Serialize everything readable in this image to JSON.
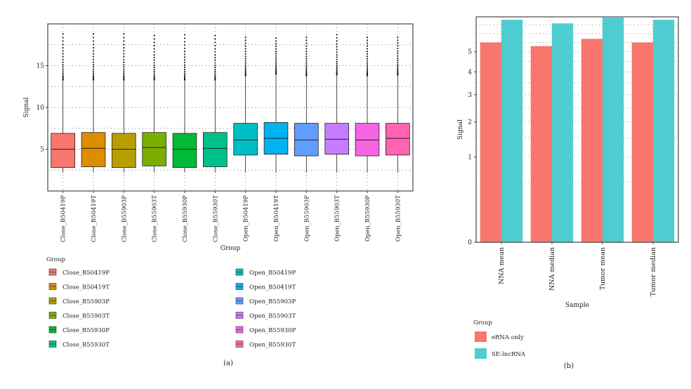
{
  "chart_data": [
    {
      "type": "box",
      "panel_label": "(a)",
      "ylabel": "Signal",
      "xlabel": "Group",
      "yticks": [
        5,
        10,
        15
      ],
      "ylim": [
        0,
        20
      ],
      "grid": "dotted",
      "legend_title": "Group",
      "legend_placement": "bottom",
      "categories": [
        "Close_B50419P",
        "Close_B50419T",
        "Close_B55903P",
        "Close_B55903T",
        "Close_B55930P",
        "Close_B55930T",
        "Open_B50419P",
        "Open_B50419T",
        "Open_B55903P",
        "Open_B55903T",
        "Open_B55930P",
        "Open_B55930T"
      ],
      "colors": [
        "#F8766D",
        "#DE8C00",
        "#B79F00",
        "#7CAE00",
        "#00BA38",
        "#00C08B",
        "#00BFC4",
        "#00B4F0",
        "#619CFF",
        "#C77CFF",
        "#F564E3",
        "#FF64B0"
      ],
      "boxes": [
        {
          "min": 2.2,
          "q1": 2.8,
          "median": 5.0,
          "q3": 6.9,
          "whisker_high": 13.3,
          "outlier_max": 18.8
        },
        {
          "min": 2.2,
          "q1": 2.9,
          "median": 5.1,
          "q3": 7.0,
          "whisker_high": 13.3,
          "outlier_max": 18.8
        },
        {
          "min": 2.2,
          "q1": 2.8,
          "median": 5.0,
          "q3": 6.9,
          "whisker_high": 13.3,
          "outlier_max": 18.8
        },
        {
          "min": 2.2,
          "q1": 3.0,
          "median": 5.2,
          "q3": 7.0,
          "whisker_high": 13.3,
          "outlier_max": 18.6
        },
        {
          "min": 2.2,
          "q1": 2.8,
          "median": 5.0,
          "q3": 6.9,
          "whisker_high": 13.3,
          "outlier_max": 18.7
        },
        {
          "min": 2.2,
          "q1": 2.9,
          "median": 5.1,
          "q3": 7.0,
          "whisker_high": 13.3,
          "outlier_max": 18.6
        },
        {
          "min": 2.2,
          "q1": 4.3,
          "median": 6.1,
          "q3": 8.1,
          "whisker_high": 13.8,
          "outlier_max": 18.4
        },
        {
          "min": 2.2,
          "q1": 4.4,
          "median": 6.3,
          "q3": 8.2,
          "whisker_high": 14.0,
          "outlier_max": 18.3
        },
        {
          "min": 2.2,
          "q1": 4.2,
          "median": 6.1,
          "q3": 8.1,
          "whisker_high": 13.8,
          "outlier_max": 18.4
        },
        {
          "min": 2.2,
          "q1": 4.4,
          "median": 6.2,
          "q3": 8.1,
          "whisker_high": 13.9,
          "outlier_max": 18.7
        },
        {
          "min": 2.2,
          "q1": 4.2,
          "median": 6.1,
          "q3": 8.1,
          "whisker_high": 13.8,
          "outlier_max": 18.4
        },
        {
          "min": 2.2,
          "q1": 4.3,
          "median": 6.3,
          "q3": 8.1,
          "whisker_high": 13.9,
          "outlier_max": 18.4
        }
      ]
    },
    {
      "type": "bar",
      "panel_label": "(b)",
      "ylabel": "Signal",
      "xlabel": "Sample",
      "yscale": "sqrt",
      "yticks": [
        0,
        1,
        2,
        3,
        4,
        5
      ],
      "ylim": [
        0,
        7.0
      ],
      "grid": "dotted",
      "legend_title": "Group",
      "legend_placement": "bottom",
      "categories": [
        "NNA mean",
        "NNA median",
        "Tumor mean",
        "Tumor median"
      ],
      "series": [
        {
          "name": "eRNA only",
          "color": "#F8766D",
          "values": [
            5.5,
            5.3,
            5.7,
            5.5
          ]
        },
        {
          "name": "SE-lncRNA",
          "color": "#4ECDD0",
          "values": [
            6.82,
            6.6,
            6.95,
            6.82
          ]
        }
      ]
    }
  ]
}
